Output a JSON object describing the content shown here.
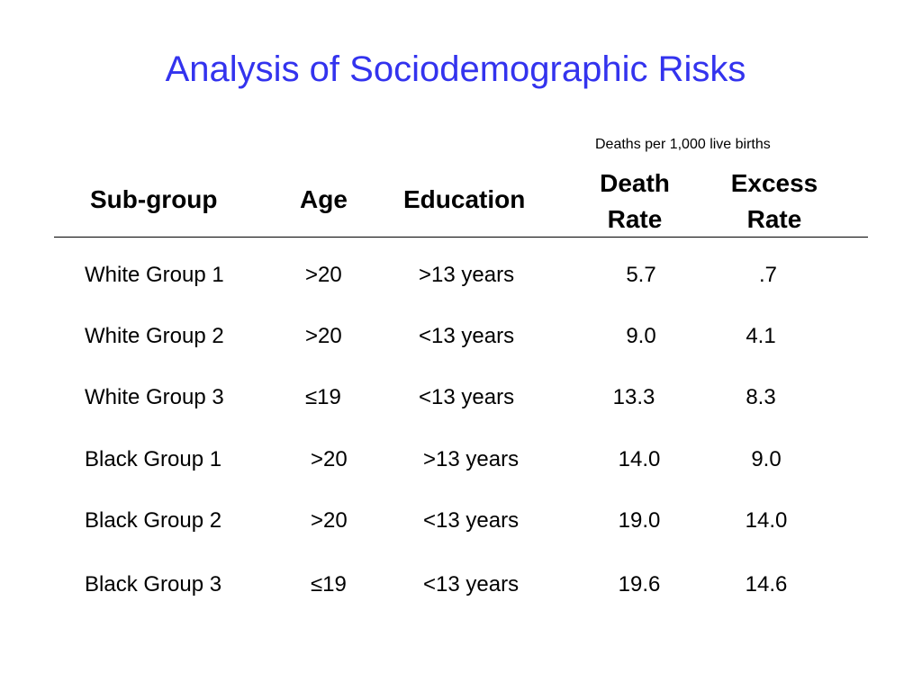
{
  "title": "Analysis of Sociodemographic Risks",
  "units_note": "Deaths per 1,000 live births",
  "headers": {
    "subgroup": "Sub-group",
    "age": "Age",
    "education": "Education",
    "death_rate_line1": "Death",
    "death_rate_line2": "Rate",
    "excess_rate_line1": "Excess",
    "excess_rate_line2": "Rate"
  },
  "rows": [
    {
      "subgroup": "White Group 1",
      "age": ">20",
      "education": ">13 years",
      "death_rate": "5.7",
      "excess_rate": ".7"
    },
    {
      "subgroup": "White Group 2",
      "age": ">20",
      "education": "<13 years",
      "death_rate": "9.0",
      "excess_rate": "4.1"
    },
    {
      "subgroup": "White Group 3",
      "age": "≤19",
      "education": "<13 years",
      "death_rate": "13.3",
      "excess_rate": "8.3"
    },
    {
      "subgroup": "Black Group 1",
      "age": ">20",
      "education": ">13 years",
      "death_rate": "14.0",
      "excess_rate": "9.0"
    },
    {
      "subgroup": "Black Group 2",
      "age": ">20",
      "education": "<13 years",
      "death_rate": "19.0",
      "excess_rate": "14.0"
    },
    {
      "subgroup": "Black Group 3",
      "age": "≤19",
      "education": "<13 years",
      "death_rate": "19.6",
      "excess_rate": "14.6"
    }
  ],
  "colors": {
    "title": "#3333ee",
    "text": "#000000",
    "background": "#ffffff"
  }
}
